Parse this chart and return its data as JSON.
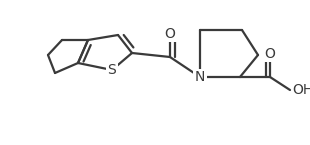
{
  "bg_color": "#ffffff",
  "bond_color": "#3a3a3a",
  "atom_color": "#3a3a3a",
  "line_width": 1.6,
  "dbo": 0.006,
  "figsize": [
    3.1,
    1.45
  ],
  "dpi": 100,
  "xlim": [
    0,
    310
  ],
  "ylim": [
    0,
    145
  ]
}
